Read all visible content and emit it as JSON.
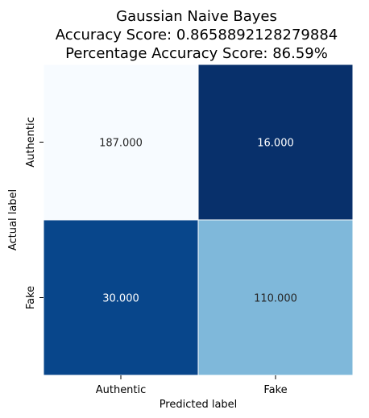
{
  "chart_data": {
    "type": "heatmap",
    "title": "Gaussian Naive Bayes",
    "subtitle_lines": [
      "Accuracy Score: 0.8658892128279884",
      "Percentage Accuracy Score: 86.59%"
    ],
    "xlabel": "Predicted label",
    "ylabel": "Actual label",
    "x_categories": [
      "Authentic",
      "Fake"
    ],
    "y_categories": [
      "Authentic",
      "Fake"
    ],
    "values": [
      [
        187,
        16
      ],
      [
        30,
        110
      ]
    ],
    "cell_labels": [
      [
        "187.000",
        "16.000"
      ],
      [
        "30.000",
        "110.000"
      ]
    ],
    "colormap": "Blues",
    "colors": {
      "cells": [
        [
          "#f7fbff",
          "#08306b"
        ],
        [
          "#08468b",
          "#7fb8da"
        ]
      ],
      "text_light": "#ffffff",
      "text_dark": "#262626",
      "gridline": "#ffffff"
    },
    "grid": false,
    "legend": "none"
  }
}
